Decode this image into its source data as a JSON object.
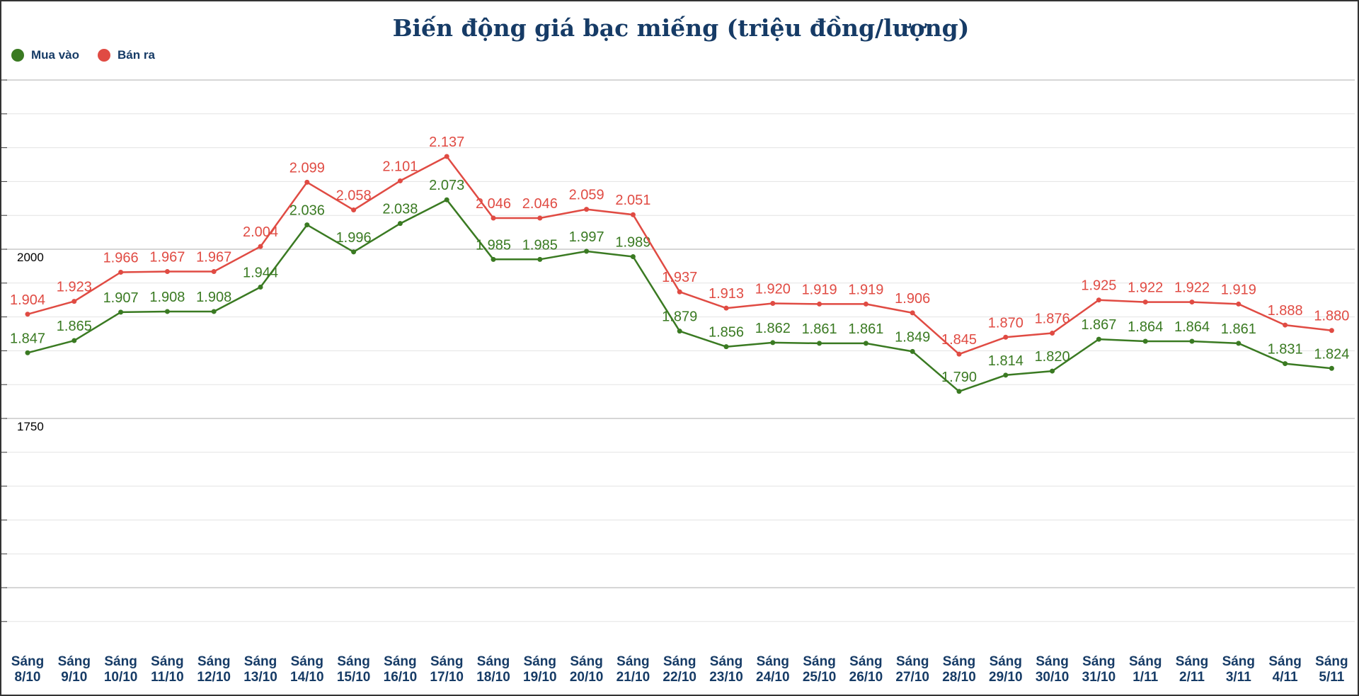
{
  "chart_data": {
    "type": "line",
    "title": "Biến động giá bạc miếng (triệu đồng/lượng)",
    "xlabel": "",
    "ylabel": "",
    "ylim": [
      1450,
      2250
    ],
    "y_ticks": [
      "2000",
      "1750"
    ],
    "y_tick_values": [
      2000,
      1750
    ],
    "grid": true,
    "legend_position": "top-left",
    "categories": [
      [
        "Sáng",
        "8/10"
      ],
      [
        "Sáng",
        "9/10"
      ],
      [
        "Sáng",
        "10/10"
      ],
      [
        "Sáng",
        "11/10"
      ],
      [
        "Sáng",
        "12/10"
      ],
      [
        "Sáng",
        "13/10"
      ],
      [
        "Sáng",
        "14/10"
      ],
      [
        "Sáng",
        "15/10"
      ],
      [
        "Sáng",
        "16/10"
      ],
      [
        "Sáng",
        "17/10"
      ],
      [
        "Sáng",
        "18/10"
      ],
      [
        "Sáng",
        "19/10"
      ],
      [
        "Sáng",
        "20/10"
      ],
      [
        "Sáng",
        "21/10"
      ],
      [
        "Sáng",
        "22/10"
      ],
      [
        "Sáng",
        "23/10"
      ],
      [
        "Sáng",
        "24/10"
      ],
      [
        "Sáng",
        "25/10"
      ],
      [
        "Sáng",
        "26/10"
      ],
      [
        "Sáng",
        "27/10"
      ],
      [
        "Sáng",
        "28/10"
      ],
      [
        "Sáng",
        "29/10"
      ],
      [
        "Sáng",
        "30/10"
      ],
      [
        "Sáng",
        "31/10"
      ],
      [
        "Sáng",
        "1/11"
      ],
      [
        "Sáng",
        "2/11"
      ],
      [
        "Sáng",
        "3/11"
      ],
      [
        "Sáng",
        "4/11"
      ],
      [
        "Sáng",
        "5/11"
      ]
    ],
    "series": [
      {
        "name": "Mua vào",
        "color": "#3a7a22",
        "values": [
          1.847,
          1.865,
          1.907,
          1.908,
          1.908,
          1.944,
          2.036,
          1.996,
          2.038,
          2.073,
          1.985,
          1.985,
          1.997,
          1.989,
          1.879,
          1.856,
          1.862,
          1.861,
          1.861,
          1.849,
          1.79,
          1.814,
          1.82,
          1.867,
          1.864,
          1.864,
          1.861,
          1.831,
          1.824
        ],
        "labels": [
          "1.847",
          "1.865",
          "1.907",
          "1.908",
          "1.908",
          "1.944",
          "2.036",
          "1.996",
          "2.038",
          "2.073",
          "1.985",
          "1.985",
          "1.997",
          "1.989",
          "1.879",
          "1.856",
          "1.862",
          "1.861",
          "1.861",
          "1.849",
          "1.790",
          "1.814",
          "1.820",
          "1.867",
          "1.864",
          "1.864",
          "1.861",
          "1.831",
          "1.824"
        ]
      },
      {
        "name": "Bán ra",
        "color": "#e04b43",
        "values": [
          1.904,
          1.923,
          1.966,
          1.967,
          1.967,
          2.004,
          2.099,
          2.058,
          2.101,
          2.137,
          2.046,
          2.046,
          2.059,
          2.051,
          1.937,
          1.913,
          1.92,
          1.919,
          1.919,
          1.906,
          1.845,
          1.87,
          1.876,
          1.925,
          1.922,
          1.922,
          1.919,
          1.888,
          1.88
        ],
        "labels": [
          "1.904",
          "1.923",
          "1.966",
          "1.967",
          "1.967",
          "2.004",
          "2.099",
          "2.058",
          "2.101",
          "2.137",
          "2.046",
          "2.046",
          "2.059",
          "2.051",
          "1.937",
          "1.913",
          "1.920",
          "1.919",
          "1.919",
          "1.906",
          "1.845",
          "1.870",
          "1.876",
          "1.925",
          "1.922",
          "1.922",
          "1.919",
          "1.888",
          "1.880"
        ]
      }
    ]
  }
}
